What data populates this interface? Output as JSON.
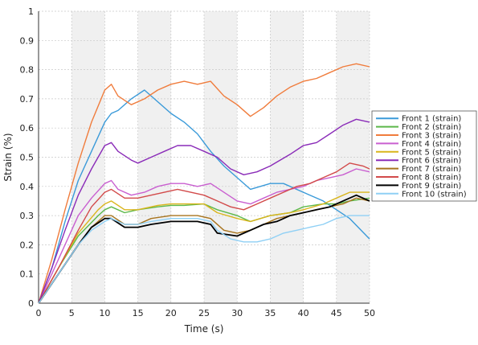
{
  "chart_data": {
    "type": "line",
    "xlabel": "Time (s)",
    "ylabel": "Strain (%)",
    "xlim": [
      0,
      50
    ],
    "ylim": [
      0,
      1
    ],
    "xticks": [
      0,
      5,
      10,
      15,
      20,
      25,
      30,
      35,
      40,
      45,
      50
    ],
    "x_tick_labels": [
      "0",
      "5",
      "10",
      "15",
      "20",
      "25",
      "30",
      "35",
      "40",
      "45",
      "50"
    ],
    "yticks": [
      0,
      0.1,
      0.2,
      0.3,
      0.4,
      0.5,
      0.6,
      0.7,
      0.8,
      0.9,
      1
    ],
    "y_tick_labels": [
      "0",
      "0.1",
      "0.2",
      "0.3",
      "0.4",
      "0.5",
      "0.6",
      "0.7",
      "0.8",
      "0.9",
      "1"
    ],
    "background_bands": "alternating shaded 5 s vertical bands",
    "legend_position": "right",
    "series": [
      {
        "name": "Front 1 (strain)",
        "color": "#3a9ad9",
        "points": [
          [
            0,
            0
          ],
          [
            2,
            0.12
          ],
          [
            4,
            0.28
          ],
          [
            6,
            0.42
          ],
          [
            8,
            0.52
          ],
          [
            10,
            0.62
          ],
          [
            11,
            0.65
          ],
          [
            12,
            0.66
          ],
          [
            14,
            0.7
          ],
          [
            16,
            0.73
          ],
          [
            18,
            0.69
          ],
          [
            20,
            0.65
          ],
          [
            22,
            0.62
          ],
          [
            24,
            0.58
          ],
          [
            26,
            0.52
          ],
          [
            28,
            0.47
          ],
          [
            30,
            0.43
          ],
          [
            32,
            0.39
          ],
          [
            35,
            0.41
          ],
          [
            37,
            0.41
          ],
          [
            40,
            0.38
          ],
          [
            43,
            0.35
          ],
          [
            45,
            0.32
          ],
          [
            47,
            0.29
          ],
          [
            50,
            0.22
          ]
        ]
      },
      {
        "name": "Front 2 (strain)",
        "color": "#5cb84a",
        "points": [
          [
            0,
            0
          ],
          [
            3,
            0.12
          ],
          [
            6,
            0.23
          ],
          [
            9,
            0.3
          ],
          [
            10,
            0.32
          ],
          [
            11,
            0.33
          ],
          [
            13,
            0.31
          ],
          [
            15,
            0.32
          ],
          [
            18,
            0.33
          ],
          [
            20,
            0.335
          ],
          [
            22,
            0.335
          ],
          [
            25,
            0.34
          ],
          [
            27,
            0.32
          ],
          [
            30,
            0.3
          ],
          [
            32,
            0.28
          ],
          [
            35,
            0.3
          ],
          [
            38,
            0.31
          ],
          [
            40,
            0.33
          ],
          [
            43,
            0.34
          ],
          [
            45,
            0.34
          ],
          [
            47,
            0.35
          ],
          [
            50,
            0.36
          ]
        ]
      },
      {
        "name": "Front 3 (strain)",
        "color": "#f07c3c",
        "points": [
          [
            0,
            0
          ],
          [
            2,
            0.15
          ],
          [
            4,
            0.32
          ],
          [
            6,
            0.48
          ],
          [
            8,
            0.62
          ],
          [
            10,
            0.73
          ],
          [
            11,
            0.75
          ],
          [
            12,
            0.71
          ],
          [
            14,
            0.68
          ],
          [
            16,
            0.7
          ],
          [
            18,
            0.73
          ],
          [
            20,
            0.75
          ],
          [
            22,
            0.76
          ],
          [
            24,
            0.75
          ],
          [
            26,
            0.76
          ],
          [
            28,
            0.71
          ],
          [
            30,
            0.68
          ],
          [
            32,
            0.64
          ],
          [
            34,
            0.67
          ],
          [
            36,
            0.71
          ],
          [
            38,
            0.74
          ],
          [
            40,
            0.76
          ],
          [
            42,
            0.77
          ],
          [
            44,
            0.79
          ],
          [
            46,
            0.81
          ],
          [
            48,
            0.82
          ],
          [
            50,
            0.81
          ]
        ]
      },
      {
        "name": "Front 4 (strain)",
        "color": "#c95fd0",
        "points": [
          [
            0,
            0
          ],
          [
            3,
            0.15
          ],
          [
            6,
            0.3
          ],
          [
            8,
            0.36
          ],
          [
            10,
            0.41
          ],
          [
            11,
            0.42
          ],
          [
            12,
            0.39
          ],
          [
            14,
            0.37
          ],
          [
            16,
            0.38
          ],
          [
            18,
            0.4
          ],
          [
            20,
            0.41
          ],
          [
            22,
            0.41
          ],
          [
            24,
            0.4
          ],
          [
            26,
            0.41
          ],
          [
            28,
            0.38
          ],
          [
            30,
            0.35
          ],
          [
            32,
            0.34
          ],
          [
            34,
            0.36
          ],
          [
            36,
            0.38
          ],
          [
            38,
            0.39
          ],
          [
            40,
            0.4
          ],
          [
            42,
            0.42
          ],
          [
            44,
            0.43
          ],
          [
            46,
            0.44
          ],
          [
            48,
            0.46
          ],
          [
            50,
            0.45
          ]
        ]
      },
      {
        "name": "Front 5 (strain)",
        "color": "#d9b51c",
        "points": [
          [
            0,
            0
          ],
          [
            3,
            0.12
          ],
          [
            6,
            0.24
          ],
          [
            9,
            0.32
          ],
          [
            10,
            0.34
          ],
          [
            11,
            0.35
          ],
          [
            13,
            0.32
          ],
          [
            15,
            0.32
          ],
          [
            18,
            0.335
          ],
          [
            20,
            0.34
          ],
          [
            22,
            0.34
          ],
          [
            25,
            0.34
          ],
          [
            27,
            0.31
          ],
          [
            30,
            0.29
          ],
          [
            32,
            0.28
          ],
          [
            35,
            0.3
          ],
          [
            38,
            0.31
          ],
          [
            40,
            0.32
          ],
          [
            43,
            0.34
          ],
          [
            45,
            0.36
          ],
          [
            47,
            0.38
          ],
          [
            50,
            0.38
          ]
        ]
      },
      {
        "name": "Front 6 (strain)",
        "color": "#8a2bb8",
        "points": [
          [
            0,
            0
          ],
          [
            2,
            0.12
          ],
          [
            4,
            0.25
          ],
          [
            6,
            0.37
          ],
          [
            8,
            0.46
          ],
          [
            10,
            0.54
          ],
          [
            11,
            0.55
          ],
          [
            12,
            0.52
          ],
          [
            14,
            0.49
          ],
          [
            15,
            0.48
          ],
          [
            17,
            0.5
          ],
          [
            19,
            0.52
          ],
          [
            21,
            0.54
          ],
          [
            23,
            0.54
          ],
          [
            25,
            0.52
          ],
          [
            27,
            0.5
          ],
          [
            29,
            0.46
          ],
          [
            31,
            0.44
          ],
          [
            33,
            0.45
          ],
          [
            35,
            0.47
          ],
          [
            38,
            0.51
          ],
          [
            40,
            0.54
          ],
          [
            42,
            0.55
          ],
          [
            44,
            0.58
          ],
          [
            46,
            0.61
          ],
          [
            48,
            0.63
          ],
          [
            50,
            0.62
          ]
        ]
      },
      {
        "name": "Front 7 (strain)",
        "color": "#a7741e",
        "points": [
          [
            0,
            0
          ],
          [
            3,
            0.1
          ],
          [
            6,
            0.2
          ],
          [
            8,
            0.26
          ],
          [
            10,
            0.3
          ],
          [
            11,
            0.3
          ],
          [
            13,
            0.27
          ],
          [
            15,
            0.27
          ],
          [
            17,
            0.29
          ],
          [
            20,
            0.3
          ],
          [
            22,
            0.3
          ],
          [
            24,
            0.3
          ],
          [
            26,
            0.29
          ],
          [
            28,
            0.25
          ],
          [
            30,
            0.24
          ],
          [
            32,
            0.25
          ],
          [
            34,
            0.27
          ],
          [
            36,
            0.29
          ],
          [
            38,
            0.3
          ],
          [
            40,
            0.31
          ],
          [
            42,
            0.32
          ],
          [
            44,
            0.33
          ],
          [
            46,
            0.34
          ],
          [
            48,
            0.36
          ],
          [
            50,
            0.35
          ]
        ]
      },
      {
        "name": "Front 8 (strain)",
        "color": "#d24a4a",
        "points": [
          [
            0,
            0
          ],
          [
            3,
            0.12
          ],
          [
            6,
            0.25
          ],
          [
            8,
            0.33
          ],
          [
            10,
            0.38
          ],
          [
            11,
            0.39
          ],
          [
            13,
            0.36
          ],
          [
            15,
            0.36
          ],
          [
            17,
            0.37
          ],
          [
            19,
            0.38
          ],
          [
            21,
            0.39
          ],
          [
            23,
            0.38
          ],
          [
            25,
            0.37
          ],
          [
            27,
            0.35
          ],
          [
            29,
            0.33
          ],
          [
            31,
            0.32
          ],
          [
            33,
            0.34
          ],
          [
            35,
            0.36
          ],
          [
            37,
            0.38
          ],
          [
            39,
            0.4
          ],
          [
            41,
            0.41
          ],
          [
            43,
            0.43
          ],
          [
            45,
            0.45
          ],
          [
            47,
            0.48
          ],
          [
            49,
            0.47
          ],
          [
            50,
            0.46
          ]
        ]
      },
      {
        "name": "Front 9 (strain)",
        "color": "#000000",
        "points": [
          [
            0,
            0
          ],
          [
            3,
            0.1
          ],
          [
            6,
            0.2
          ],
          [
            8,
            0.26
          ],
          [
            10,
            0.29
          ],
          [
            11,
            0.29
          ],
          [
            13,
            0.26
          ],
          [
            15,
            0.26
          ],
          [
            17,
            0.27
          ],
          [
            20,
            0.28
          ],
          [
            22,
            0.28
          ],
          [
            24,
            0.28
          ],
          [
            26,
            0.27
          ],
          [
            27,
            0.24
          ],
          [
            30,
            0.23
          ],
          [
            32,
            0.25
          ],
          [
            34,
            0.27
          ],
          [
            36,
            0.28
          ],
          [
            38,
            0.3
          ],
          [
            40,
            0.31
          ],
          [
            42,
            0.32
          ],
          [
            44,
            0.33
          ],
          [
            46,
            0.35
          ],
          [
            48,
            0.37
          ],
          [
            50,
            0.35
          ]
        ]
      },
      {
        "name": "Front 10 (strain)",
        "color": "#8fd0f5",
        "points": [
          [
            0,
            0
          ],
          [
            3,
            0.1
          ],
          [
            6,
            0.2
          ],
          [
            8,
            0.25
          ],
          [
            10,
            0.28
          ],
          [
            11,
            0.29
          ],
          [
            13,
            0.27
          ],
          [
            15,
            0.27
          ],
          [
            17,
            0.28
          ],
          [
            20,
            0.29
          ],
          [
            22,
            0.29
          ],
          [
            24,
            0.29
          ],
          [
            26,
            0.28
          ],
          [
            27,
            0.25
          ],
          [
            29,
            0.22
          ],
          [
            31,
            0.21
          ],
          [
            33,
            0.21
          ],
          [
            35,
            0.22
          ],
          [
            37,
            0.24
          ],
          [
            39,
            0.25
          ],
          [
            41,
            0.26
          ],
          [
            43,
            0.27
          ],
          [
            45,
            0.29
          ],
          [
            47,
            0.3
          ],
          [
            49,
            0.3
          ],
          [
            50,
            0.3
          ]
        ]
      }
    ]
  }
}
